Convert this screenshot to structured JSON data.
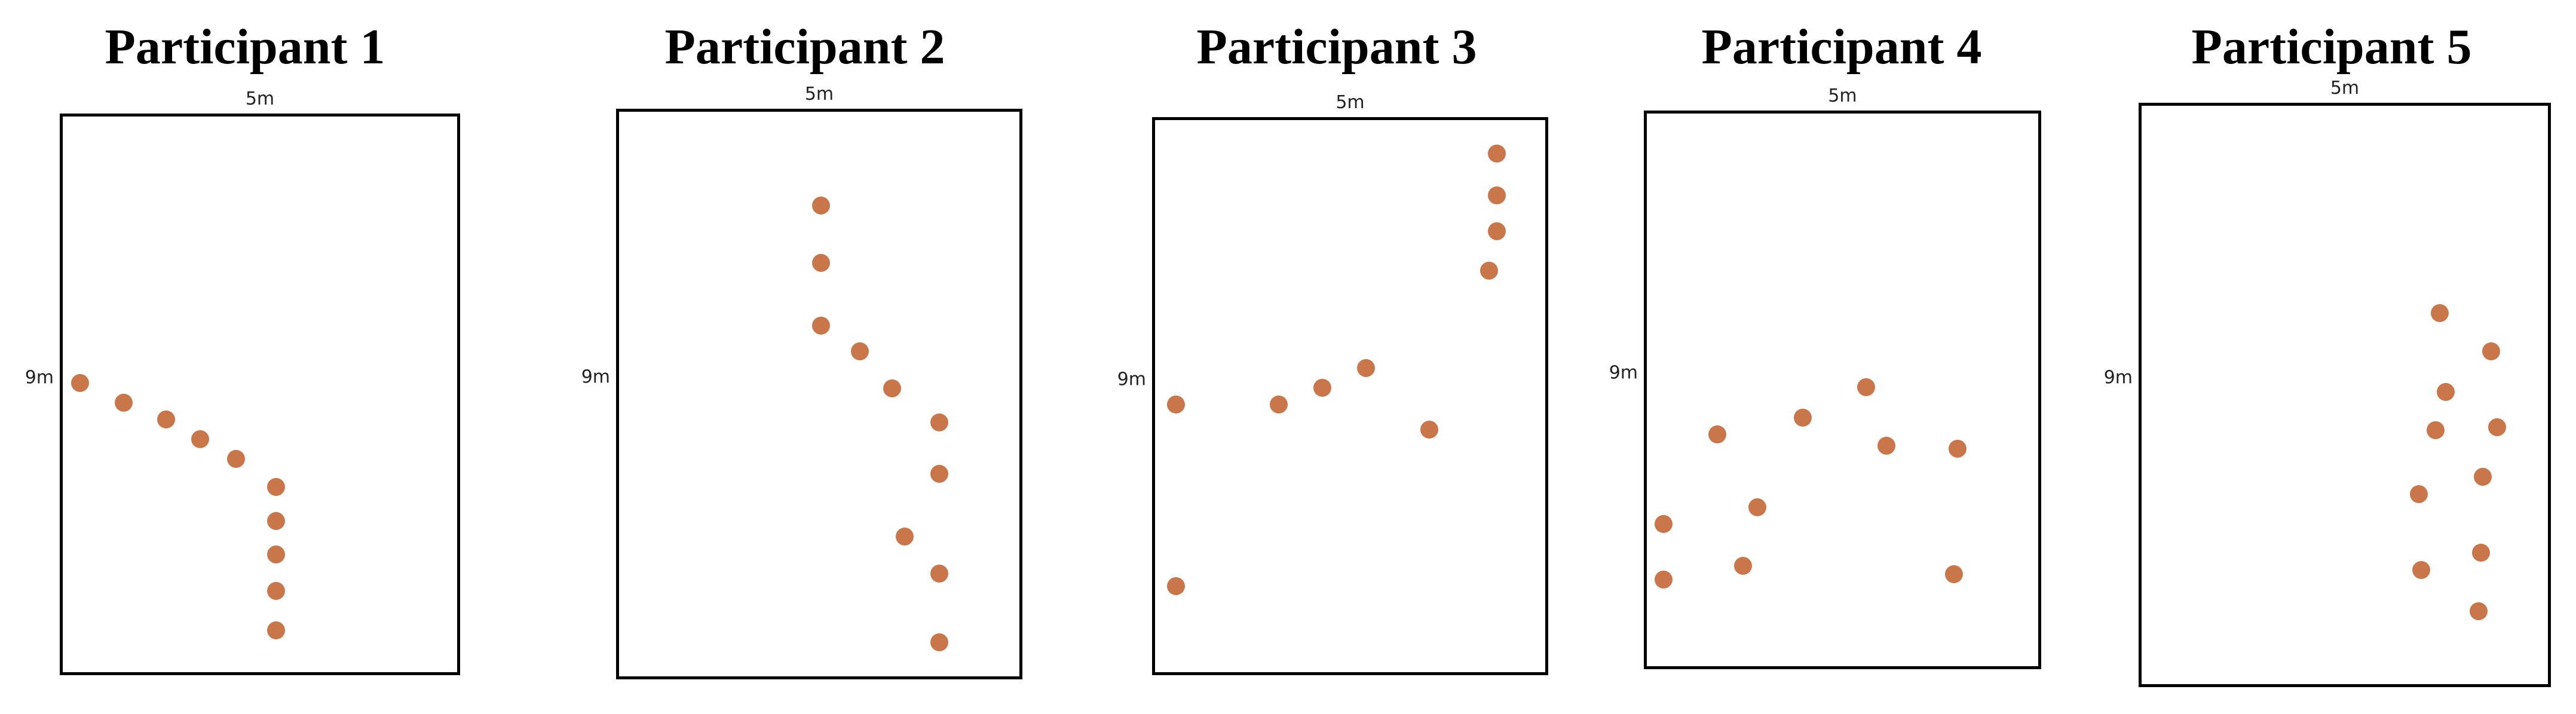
{
  "colors": {
    "dot": "#C8764A",
    "frame": "#000000"
  },
  "width_label": "5m",
  "height_label": "9m",
  "panels": [
    {
      "title": "Participant 1",
      "points": [
        [
          0.05,
          0.48
        ],
        [
          0.16,
          0.515
        ],
        [
          0.265,
          0.545
        ],
        [
          0.35,
          0.58
        ],
        [
          0.44,
          0.615
        ],
        [
          0.54,
          0.665
        ],
        [
          0.54,
          0.725
        ],
        [
          0.54,
          0.785
        ],
        [
          0.54,
          0.85
        ],
        [
          0.54,
          0.92
        ]
      ]
    },
    {
      "title": "Participant 2",
      "points": [
        [
          0.505,
          0.17
        ],
        [
          0.505,
          0.27
        ],
        [
          0.505,
          0.38
        ],
        [
          0.6,
          0.425
        ],
        [
          0.68,
          0.49
        ],
        [
          0.795,
          0.55
        ],
        [
          0.795,
          0.64
        ],
        [
          0.71,
          0.75
        ],
        [
          0.795,
          0.815
        ],
        [
          0.795,
          0.935
        ]
      ]
    },
    {
      "title": "Participant 3",
      "points": [
        [
          0.87,
          0.065
        ],
        [
          0.87,
          0.14
        ],
        [
          0.87,
          0.205
        ],
        [
          0.85,
          0.275
        ],
        [
          0.06,
          0.515
        ],
        [
          0.32,
          0.515
        ],
        [
          0.43,
          0.485
        ],
        [
          0.54,
          0.45
        ],
        [
          0.7,
          0.56
        ],
        [
          0.06,
          0.84
        ]
      ]
    },
    {
      "title": "Participant 4",
      "points": [
        [
          0.05,
          0.74
        ],
        [
          0.05,
          0.84
        ],
        [
          0.185,
          0.58
        ],
        [
          0.25,
          0.815
        ],
        [
          0.285,
          0.71
        ],
        [
          0.4,
          0.55
        ],
        [
          0.56,
          0.495
        ],
        [
          0.61,
          0.6
        ],
        [
          0.79,
          0.605
        ],
        [
          0.78,
          0.83
        ]
      ]
    },
    {
      "title": "Participant 5",
      "points": [
        [
          0.73,
          0.36
        ],
        [
          0.855,
          0.425
        ],
        [
          0.745,
          0.495
        ],
        [
          0.72,
          0.56
        ],
        [
          0.87,
          0.555
        ],
        [
          0.835,
          0.64
        ],
        [
          0.68,
          0.67
        ],
        [
          0.83,
          0.77
        ],
        [
          0.685,
          0.8
        ],
        [
          0.825,
          0.87
        ]
      ]
    }
  ]
}
